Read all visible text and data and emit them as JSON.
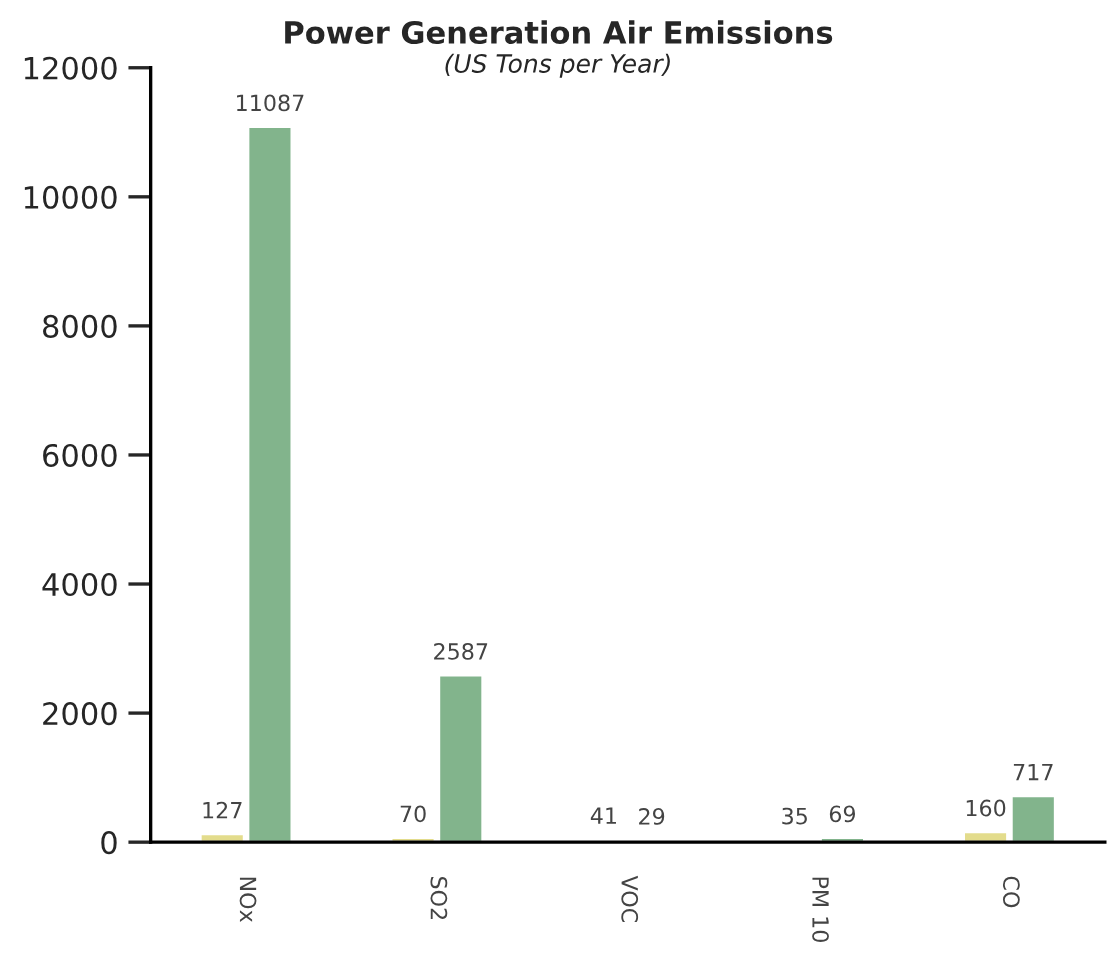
{
  "chart_data": {
    "type": "bar",
    "title": "Power Generation Air Emissions",
    "subtitle": "(US Tons per Year)",
    "categories": [
      "NOx",
      "SO2",
      "VOC",
      "PM 10",
      "CO"
    ],
    "series": [
      {
        "color": "#e3dc8c",
        "values": [
          127,
          70,
          41,
          35,
          160
        ]
      },
      {
        "color": "#82b48c",
        "values": [
          11087,
          2587,
          29,
          69,
          717
        ]
      }
    ],
    "ylim": [
      0,
      12000
    ],
    "yticks": [
      0,
      2000,
      4000,
      6000,
      8000,
      10000,
      12000
    ],
    "data_labels": true,
    "grid": false,
    "legend": false
  }
}
